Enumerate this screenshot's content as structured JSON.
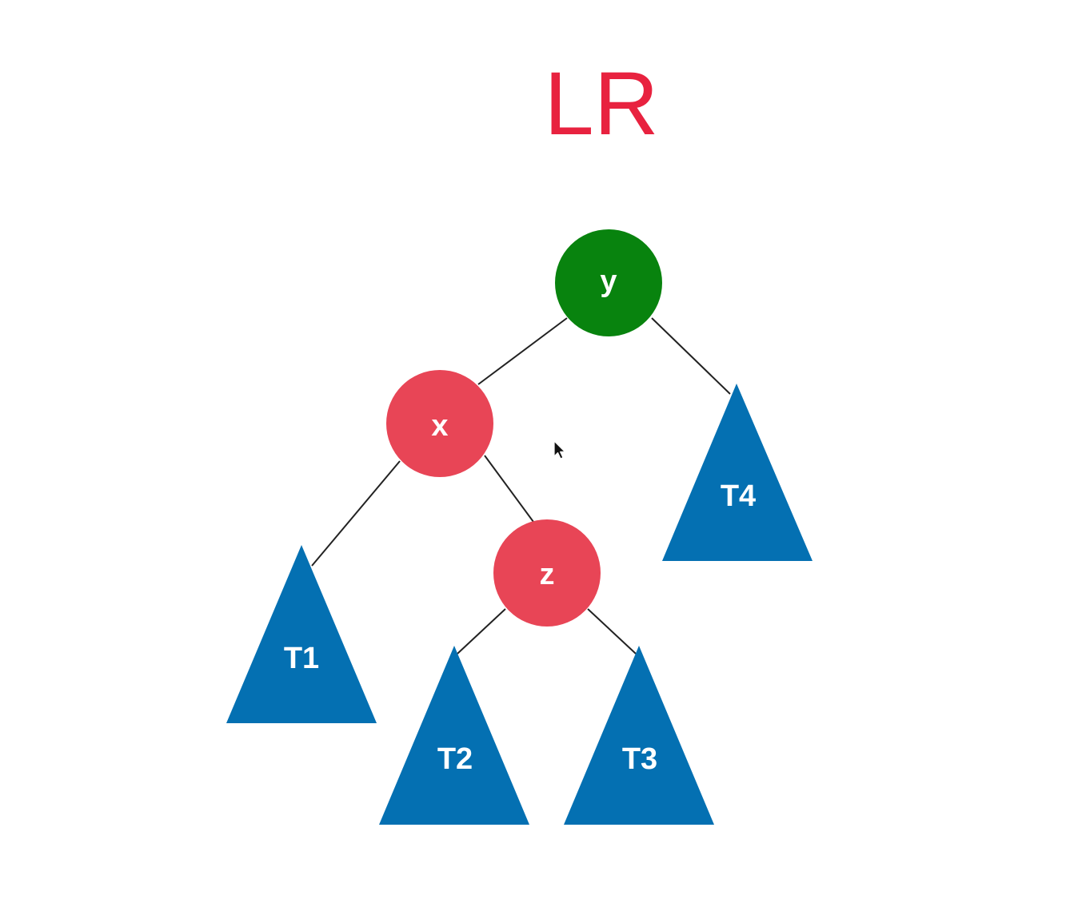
{
  "title": "LR",
  "colors": {
    "title": "#e8223f",
    "root_node": "#08830e",
    "unbalanced_node": "#e84556",
    "subtree": "#0470b2",
    "edge": "#222222",
    "label": "#ffffff"
  },
  "nodes": {
    "y": {
      "label": "y",
      "role": "root"
    },
    "x": {
      "label": "x",
      "role": "left-child"
    },
    "z": {
      "label": "z",
      "role": "left-right-grandchild"
    }
  },
  "subtrees": {
    "T1": {
      "label": "T1"
    },
    "T2": {
      "label": "T2"
    },
    "T3": {
      "label": "T3"
    },
    "T4": {
      "label": "T4"
    }
  },
  "edges": [
    [
      "y",
      "x"
    ],
    [
      "y",
      "T4"
    ],
    [
      "x",
      "T1"
    ],
    [
      "x",
      "z"
    ],
    [
      "z",
      "T2"
    ],
    [
      "z",
      "T3"
    ]
  ],
  "cursor_icon": "arrow-cursor-icon"
}
